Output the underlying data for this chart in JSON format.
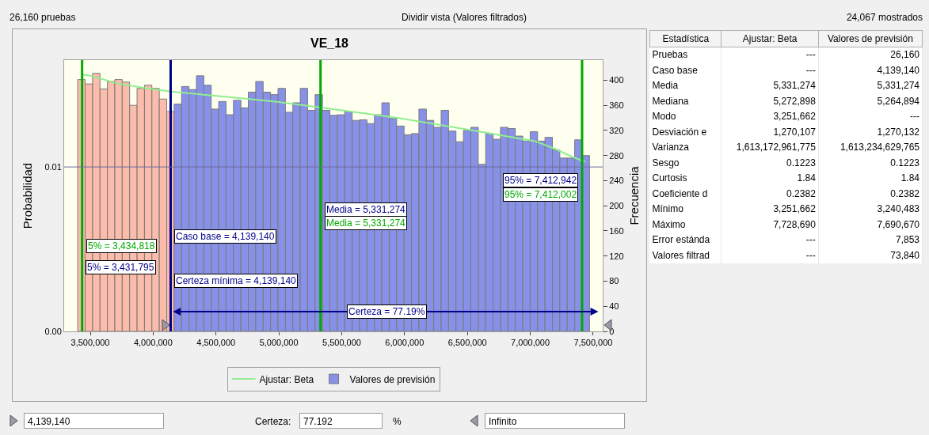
{
  "chart_data": [
    {
      "type": "other",
      "annotations": [
        "26,160 pruebas",
        "Dividir vista (Valores filtrados)",
        "24,067 mostrados",
        "4,139,140",
        "Certeza:",
        "77.192",
        "%",
        "Infinito"
      ]
    },
    {
      "type": "histogram",
      "title": "VE_18",
      "ylabel": "Probabilidad",
      "y2label": "Frecuencia",
      "bins": [
        3400000,
        3459000,
        3518000,
        3577000,
        3636000,
        3695000,
        3754000,
        3813000,
        3872000,
        3931000,
        3990000,
        4049000,
        4108000,
        4167000,
        4226000,
        4285000,
        4344000,
        4403000,
        4462000,
        4521000,
        4580000,
        4639000,
        4698000,
        4757000,
        4816000,
        4875000,
        4934000,
        4993000,
        5052000,
        5111000,
        5170000,
        5229000,
        5288000,
        5347000,
        5406000,
        5465000,
        5524000,
        5583000,
        5642000,
        5701000,
        5760000,
        5819000,
        5878000,
        5937000,
        5996000,
        6055000,
        6114000,
        6173000,
        6232000,
        6291000,
        6350000,
        6409000,
        6468000,
        6527000,
        6586000,
        6645000,
        6704000,
        6763000,
        6822000,
        6881000,
        6940000,
        6999000,
        7058000,
        7117000,
        7176000,
        7235000,
        7294000,
        7353000,
        7412000,
        7471000
      ],
      "series": [
        {
          "name": "Valores de previsión",
          "type": "histogram",
          "axis": "y2",
          "color": "#8891e8",
          "values": [
            401,
            394,
            411,
            386,
            398,
            401,
            397,
            360,
            387,
            392,
            387,
            370,
            350,
            362,
            390,
            385,
            407,
            392,
            354,
            366,
            345,
            368,
            356,
            381,
            398,
            381,
            377,
            387,
            349,
            364,
            387,
            352,
            377,
            352,
            344,
            345,
            350,
            336,
            337,
            331,
            345,
            364,
            339,
            327,
            313,
            315,
            354,
            336,
            325,
            352,
            319,
            302,
            320,
            325,
            266,
            315,
            306,
            325,
            323,
            311,
            303,
            318,
            303,
            309,
            289,
            276,
            276,
            305,
            280
          ],
          "colors": [
            "#fbbcab",
            "#fbbcab",
            "#fbbcab",
            "#fbbcab",
            "#fbbcab",
            "#fbbcab",
            "#fbbcab",
            "#fbbcab",
            "#fbbcab",
            "#fbbcab",
            "#fbbcab",
            "#fbbcab",
            "#fbbcab",
            "#8891e8",
            "#8891e8",
            "#8891e8",
            "#8891e8",
            "#8891e8",
            "#8891e8",
            "#8891e8",
            "#8891e8",
            "#8891e8",
            "#8891e8",
            "#8891e8",
            "#8891e8",
            "#8891e8",
            "#8891e8",
            "#8891e8",
            "#8891e8",
            "#8891e8",
            "#8891e8",
            "#8891e8",
            "#8891e8",
            "#8891e8",
            "#8891e8",
            "#8891e8",
            "#8891e8",
            "#8891e8",
            "#8891e8",
            "#8891e8",
            "#8891e8",
            "#8891e8",
            "#8891e8",
            "#8891e8",
            "#8891e8",
            "#8891e8",
            "#8891e8",
            "#8891e8",
            "#8891e8",
            "#8891e8",
            "#8891e8",
            "#8891e8",
            "#8891e8",
            "#8891e8",
            "#8891e8",
            "#8891e8",
            "#8891e8",
            "#8891e8",
            "#8891e8",
            "#8891e8",
            "#8891e8",
            "#8891e8",
            "#8891e8",
            "#8891e8",
            "#8891e8",
            "#8891e8",
            "#8891e8",
            "#8891e8",
            "#8891e8"
          ]
        },
        {
          "name": "Ajustar: Beta",
          "type": "line",
          "axis": "y2",
          "color": "#90ee90",
          "x": [
            3435000,
            3502000,
            3713000,
            3923000,
            4139000,
            4554000,
            4975000,
            5396000,
            5943000,
            6574000,
            7037000,
            7206000,
            7332000,
            7437000
          ],
          "values": [
            409,
            407,
            395,
            388,
            382,
            374,
            366,
            355,
            340,
            319,
            303,
            290,
            278,
            270
          ]
        }
      ],
      "xlim": [
        3292000,
        7576000
      ],
      "xticks": [
        {
          "value": 3500000,
          "label": "3,500,000"
        },
        {
          "value": 4000000,
          "label": "4,000,000"
        },
        {
          "value": 4500000,
          "label": "4,500,000"
        },
        {
          "value": 5000000,
          "label": "5,000,000"
        },
        {
          "value": 5500000,
          "label": "5,500,000"
        },
        {
          "value": 6000000,
          "label": "6,000,000"
        },
        {
          "value": 6500000,
          "label": "6,500,000"
        },
        {
          "value": 7000000,
          "label": "7,000,000"
        },
        {
          "value": 7500000,
          "label": "7,500,000"
        }
      ],
      "ylim": [
        0,
        0.0165
      ],
      "yticks": [
        {
          "value": 0,
          "label": "0.00"
        },
        {
          "value": 0.01,
          "label": "0.01"
        }
      ],
      "y2lim": [
        0,
        432
      ],
      "y2ticks": [
        0,
        40,
        80,
        120,
        160,
        200,
        240,
        280,
        320,
        360,
        400
      ],
      "legend": "bottom",
      "marker": "none",
      "line_style": "solid",
      "ref_lines": [
        {
          "axis": "x",
          "value": 3434818,
          "label": "5% = 3,434,818",
          "color": "#00aa00"
        },
        {
          "axis": "x",
          "value": 4139140,
          "label": "Caso base = 4,139,140",
          "color": "#00008b"
        },
        {
          "axis": "x",
          "value": 5331274,
          "label": "Media = 5,331,274",
          "color": "#00aa00"
        },
        {
          "axis": "x",
          "value": 7412002,
          "label": "95% = 7,412,002",
          "color": "#00aa00"
        },
        {
          "axis": "y",
          "value": 0.01,
          "color": "#6a6aa0"
        }
      ],
      "annotations": [
        {
          "text": "5% = 3,431,795",
          "x": 3431795,
          "y": 0.0039
        },
        {
          "text": "Certeza mínima = 4,139,140",
          "x": 4139140,
          "y": 0.0031
        },
        {
          "text": "Media = 5,331,274",
          "x": 5331274,
          "y": 0.0074
        },
        {
          "text": "95% = 7,412,942",
          "x": 7412942,
          "y": 0.0092
        },
        {
          "text": "Certeza = 77.19%",
          "x": 5858000,
          "y": 0.0012
        }
      ]
    },
    {
      "type": "other",
      "annotations": [
        "Estadística",
        "Ajustar: Beta",
        "Valores de previsión",
        "Pruebas",
        "---",
        "26,160",
        "Caso base",
        "---",
        "4,139,140",
        "Media",
        "5,331,274",
        "5,331,274",
        "Mediana",
        "5,272,898",
        "5,264,894",
        "Modo",
        "3,251,662",
        "---",
        "Desviación e",
        "1,270,107",
        "1,270,132",
        "Varianza",
        "1,613,172,961,775",
        "1,613,234,629,765",
        "Sesgo",
        "0.1223",
        "0.1223",
        "Curtosis",
        "1.84",
        "1.84",
        "Coeficiente d",
        "0.2382",
        "0.2382",
        "Mínimo",
        "3,251,662",
        "3,240,483",
        "Máximo",
        "7,728,690",
        "7,690,670",
        "Error estánda",
        "---",
        "7,853",
        "Valores filtrad",
        "---",
        "73,840"
      ]
    }
  ]
}
